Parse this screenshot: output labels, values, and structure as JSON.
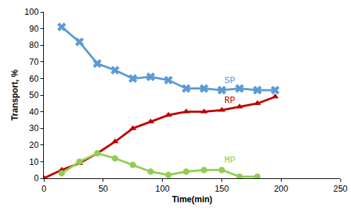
{
  "chart_data": {
    "type": "line",
    "x_label": "Time(min)",
    "y_label": "Transport, %",
    "x": [
      0,
      15,
      30,
      45,
      60,
      75,
      90,
      105,
      120,
      135,
      150,
      165,
      180,
      195
    ],
    "series": [
      {
        "name": "SP",
        "color": "#5b9bd5",
        "marker": "x",
        "values": [
          null,
          91,
          82,
          69,
          65,
          60,
          61,
          59,
          54,
          54,
          53,
          54,
          53,
          53
        ]
      },
      {
        "name": "RP",
        "color": "#c00000",
        "marker": "triangle",
        "values": [
          0,
          5,
          9,
          15,
          22,
          30,
          34,
          38,
          40,
          40,
          41,
          43,
          45,
          49
        ]
      },
      {
        "name": "MP",
        "color": "#8fce52",
        "marker": "circle",
        "values": [
          null,
          3,
          10,
          15,
          12,
          8,
          4,
          2,
          4,
          5,
          5,
          1,
          1,
          null
        ]
      }
    ],
    "xlim": [
      0,
      250
    ],
    "xticks": [
      0,
      50,
      100,
      150,
      200,
      250
    ],
    "ylim": [
      0,
      100
    ],
    "yticks": [
      0,
      10,
      20,
      30,
      40,
      50,
      60,
      70,
      80,
      90,
      100
    ],
    "grid": false
  }
}
